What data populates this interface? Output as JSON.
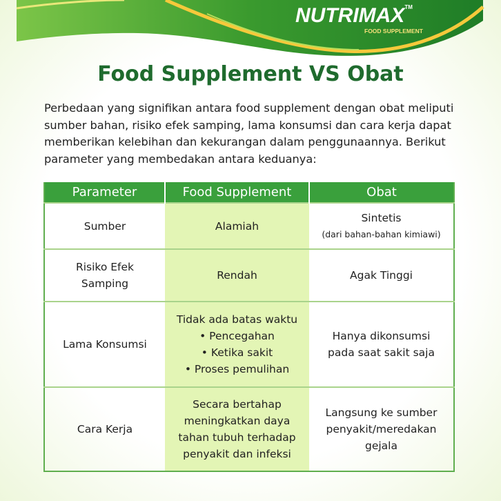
{
  "brand": {
    "name": "NUTRIMAX",
    "trademark": "TM",
    "tagline": "FOOD SUPPLEMENT",
    "colors": {
      "green": "#3aa03c",
      "yellow": "#f6c93b",
      "title": "#1f6b2e",
      "highlight": "#e3f5b5"
    }
  },
  "title": "Food Supplement VS Obat",
  "intro": "Perbedaan yang signifikan antara food supplement dengan obat meliputi sumber bahan, risiko efek samping, lama konsumsi dan cara kerja dapat memberikan kelebihan dan kekurangan dalam penggunaannya. Berikut parameter yang membedakan antara keduanya:",
  "table": {
    "headers": [
      "Parameter",
      "Food Supplement",
      "Obat"
    ],
    "rows": [
      {
        "parameter": "Sumber",
        "supplement": "Alamiah",
        "obat": "Sintetis",
        "obat_note": "(dari bahan-bahan kimiawi)"
      },
      {
        "parameter": "Risiko Efek Samping",
        "supplement": "Rendah",
        "obat": "Agak Tinggi"
      },
      {
        "parameter": "Lama Konsumsi",
        "supplement": "Tidak ada batas waktu",
        "supplement_items": [
          "• Pencegahan",
          "• Ketika sakit",
          "• Proses pemulihan"
        ],
        "obat": "Hanya dikonsumsi pada saat sakit saja"
      },
      {
        "parameter": "Cara Kerja",
        "supplement": "Secara bertahap meningkatkan daya tahan tubuh terhadap penyakit dan infeksi",
        "obat": "Langsung ke sumber penyakit/meredakan gejala"
      }
    ]
  }
}
